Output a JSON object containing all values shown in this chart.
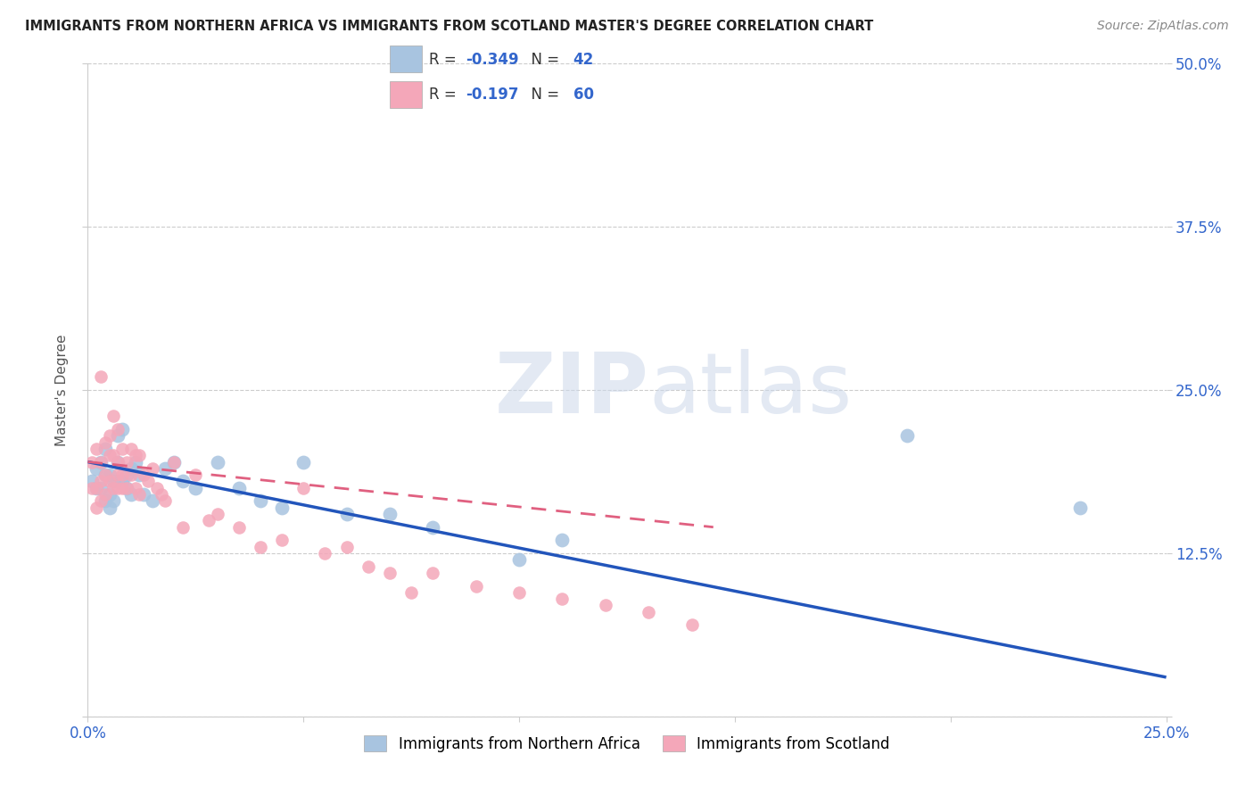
{
  "title": "IMMIGRANTS FROM NORTHERN AFRICA VS IMMIGRANTS FROM SCOTLAND MASTER'S DEGREE CORRELATION CHART",
  "source": "Source: ZipAtlas.com",
  "ylabel": "Master's Degree",
  "xlim": [
    0.0,
    0.25
  ],
  "ylim": [
    0.0,
    0.5
  ],
  "xticks": [
    0.0,
    0.05,
    0.1,
    0.15,
    0.2,
    0.25
  ],
  "yticks": [
    0.0,
    0.125,
    0.25,
    0.375,
    0.5
  ],
  "xticklabels": [
    "0.0%",
    "",
    "",
    "",
    "",
    "25.0%"
  ],
  "yticklabels_left": [
    "",
    "",
    "",
    "",
    ""
  ],
  "yticklabels_right": [
    "",
    "12.5%",
    "25.0%",
    "37.5%",
    "50.0%"
  ],
  "legend_r_blue": "-0.349",
  "legend_n_blue": "42",
  "legend_r_pink": "-0.197",
  "legend_n_pink": "60",
  "blue_color": "#a8c4e0",
  "pink_color": "#f4a7b9",
  "blue_line_color": "#2255bb",
  "pink_line_color": "#e06080",
  "watermark_zip": "ZIP",
  "watermark_atlas": "atlas",
  "blue_scatter_x": [
    0.001,
    0.002,
    0.002,
    0.003,
    0.003,
    0.004,
    0.004,
    0.004,
    0.005,
    0.005,
    0.005,
    0.006,
    0.006,
    0.007,
    0.007,
    0.007,
    0.008,
    0.008,
    0.009,
    0.009,
    0.01,
    0.01,
    0.011,
    0.012,
    0.013,
    0.015,
    0.018,
    0.02,
    0.022,
    0.025,
    0.03,
    0.035,
    0.04,
    0.045,
    0.05,
    0.06,
    0.07,
    0.08,
    0.1,
    0.11,
    0.19,
    0.23
  ],
  "blue_scatter_y": [
    0.18,
    0.19,
    0.175,
    0.195,
    0.175,
    0.205,
    0.185,
    0.165,
    0.185,
    0.17,
    0.16,
    0.18,
    0.165,
    0.195,
    0.18,
    0.215,
    0.22,
    0.18,
    0.185,
    0.175,
    0.19,
    0.17,
    0.195,
    0.185,
    0.17,
    0.165,
    0.19,
    0.195,
    0.18,
    0.175,
    0.195,
    0.175,
    0.165,
    0.16,
    0.195,
    0.155,
    0.155,
    0.145,
    0.12,
    0.135,
    0.215,
    0.16
  ],
  "pink_scatter_x": [
    0.001,
    0.001,
    0.002,
    0.002,
    0.002,
    0.003,
    0.003,
    0.003,
    0.003,
    0.004,
    0.004,
    0.004,
    0.005,
    0.005,
    0.005,
    0.006,
    0.006,
    0.006,
    0.007,
    0.007,
    0.007,
    0.007,
    0.008,
    0.008,
    0.008,
    0.009,
    0.009,
    0.01,
    0.01,
    0.011,
    0.011,
    0.012,
    0.012,
    0.013,
    0.014,
    0.015,
    0.016,
    0.017,
    0.018,
    0.02,
    0.022,
    0.025,
    0.028,
    0.03,
    0.035,
    0.04,
    0.045,
    0.05,
    0.055,
    0.06,
    0.065,
    0.07,
    0.075,
    0.08,
    0.09,
    0.1,
    0.11,
    0.12,
    0.13,
    0.14
  ],
  "pink_scatter_y": [
    0.195,
    0.175,
    0.205,
    0.175,
    0.16,
    0.26,
    0.195,
    0.18,
    0.165,
    0.21,
    0.185,
    0.17,
    0.215,
    0.2,
    0.18,
    0.23,
    0.2,
    0.175,
    0.22,
    0.195,
    0.185,
    0.175,
    0.205,
    0.185,
    0.175,
    0.195,
    0.175,
    0.205,
    0.185,
    0.2,
    0.175,
    0.2,
    0.17,
    0.185,
    0.18,
    0.19,
    0.175,
    0.17,
    0.165,
    0.195,
    0.145,
    0.185,
    0.15,
    0.155,
    0.145,
    0.13,
    0.135,
    0.175,
    0.125,
    0.13,
    0.115,
    0.11,
    0.095,
    0.11,
    0.1,
    0.095,
    0.09,
    0.085,
    0.08,
    0.07
  ],
  "blue_line_x": [
    0.0,
    0.25
  ],
  "blue_line_y": [
    0.195,
    0.03
  ],
  "pink_line_x": [
    0.0,
    0.145
  ],
  "pink_line_y": [
    0.195,
    0.145
  ]
}
